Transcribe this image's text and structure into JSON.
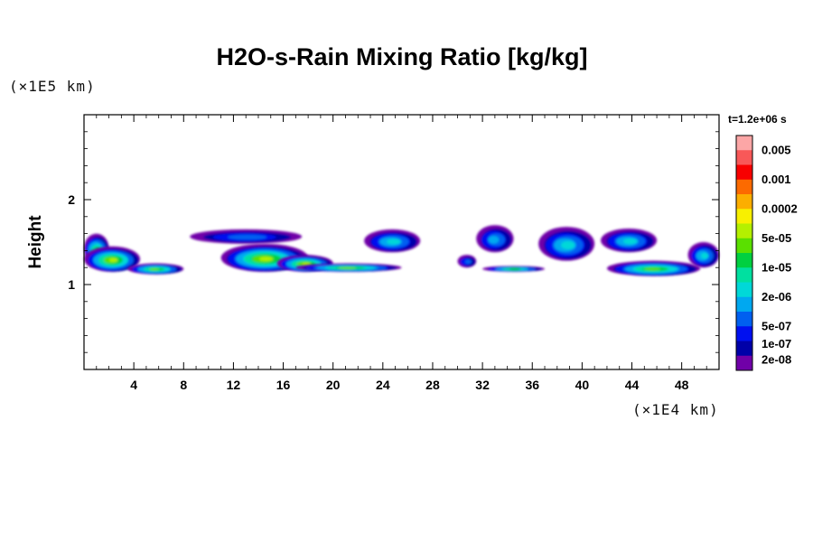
{
  "chart_data": {
    "type": "heatmap",
    "title": "H2O-s-Rain Mixing Ratio [kg/kg]",
    "ylabel": "Height",
    "x_unit": "(×1E4 km)",
    "y_unit": "(×1E5 km)",
    "time_label": "t=1.2e+06 s",
    "xlim": [
      0,
      51
    ],
    "ylim": [
      0,
      3
    ],
    "x_ticks": [
      4,
      8,
      12,
      16,
      20,
      24,
      28,
      32,
      36,
      40,
      44,
      48
    ],
    "y_ticks": [
      1,
      2
    ],
    "colorbar": {
      "levels": [
        "0.005",
        "0.001",
        "0.0002",
        "5e-05",
        "1e-05",
        "2e-06",
        "5e-07",
        "1e-07",
        "2e-08"
      ],
      "colors": [
        "#fca6a6",
        "#f85858",
        "#f80000",
        "#fc6a00",
        "#fcae00",
        "#f8f000",
        "#b4f000",
        "#5ae000",
        "#00d040",
        "#00e0a0",
        "#00d8d8",
        "#00a8f0",
        "#0060f0",
        "#0010f0",
        "#0000a8",
        "#7000a8"
      ]
    },
    "regions": [
      {
        "x": [
          0,
          2.0
        ],
        "y": [
          1.25,
          1.6
        ],
        "peak": 7
      },
      {
        "x": [
          0,
          4.5
        ],
        "y": [
          1.15,
          1.45
        ],
        "peak": 9
      },
      {
        "x": [
          3.5,
          8.0
        ],
        "y": [
          1.12,
          1.25
        ],
        "peak": 8
      },
      {
        "x": [
          8.5,
          17.5
        ],
        "y": [
          1.48,
          1.65
        ],
        "peak": 3
      },
      {
        "x": [
          11.0,
          18.0
        ],
        "y": [
          1.15,
          1.48
        ],
        "peak": 9
      },
      {
        "x": [
          15.5,
          20.0
        ],
        "y": [
          1.15,
          1.35
        ],
        "peak": 9
      },
      {
        "x": [
          17.0,
          25.5
        ],
        "y": [
          1.15,
          1.25
        ],
        "peak": 8
      },
      {
        "x": [
          22.5,
          27.0
        ],
        "y": [
          1.38,
          1.65
        ],
        "peak": 5
      },
      {
        "x": [
          30.0,
          31.5
        ],
        "y": [
          1.2,
          1.35
        ],
        "peak": 3
      },
      {
        "x": [
          31.5,
          34.5
        ],
        "y": [
          1.38,
          1.7
        ],
        "peak": 4
      },
      {
        "x": [
          32.0,
          37.0
        ],
        "y": [
          1.15,
          1.22
        ],
        "peak": 7
      },
      {
        "x": [
          36.5,
          41.0
        ],
        "y": [
          1.28,
          1.68
        ],
        "peak": 5
      },
      {
        "x": [
          41.5,
          46.0
        ],
        "y": [
          1.38,
          1.66
        ],
        "peak": 5
      },
      {
        "x": [
          42.0,
          49.5
        ],
        "y": [
          1.1,
          1.28
        ],
        "peak": 8
      },
      {
        "x": [
          48.5,
          51.0
        ],
        "y": [
          1.2,
          1.5
        ],
        "peak": 5
      }
    ]
  }
}
